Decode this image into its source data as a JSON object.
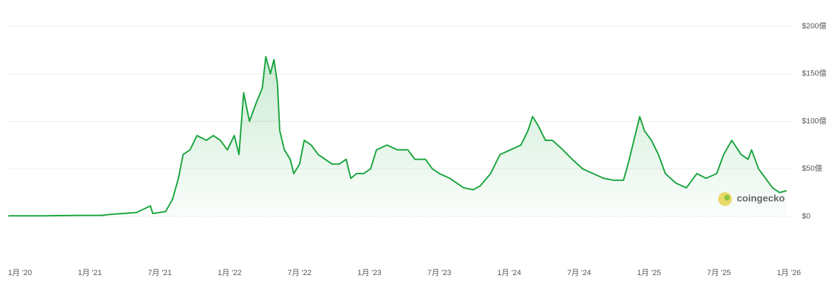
{
  "chart_data": {
    "type": "area-line",
    "x": [
      5,
      8,
      11,
      13,
      13.7,
      16,
      17.2,
      17.4,
      18.5,
      19.1,
      19.6,
      20,
      20.6,
      21.2,
      22,
      22.6,
      23.2,
      23.8,
      24.4,
      24.8,
      25.2,
      25.7,
      26.3,
      26.8,
      27.1,
      27.5,
      27.8,
      28.1,
      28.3,
      28.7,
      29.2,
      29.5,
      30,
      30.4,
      31,
      31.6,
      32.2,
      32.8,
      33.4,
      34,
      34.4,
      34.9,
      35.5,
      36.1,
      36.6,
      37.5,
      38.4,
      39.3,
      39.9,
      40.8,
      41.4,
      42,
      42.9,
      44.1,
      44.9,
      45.5,
      46.4,
      47.2,
      48.1,
      49,
      49.6,
      50,
      50.5,
      51.1,
      51.7,
      52.6,
      53.4,
      54.3,
      55.2,
      56.1,
      57,
      57.8,
      58.2,
      58.7,
      59.2,
      59.6,
      60.2,
      60.8,
      61.4,
      62.3,
      63.2,
      64.1,
      64.9,
      65.8,
      66.4,
      67.1,
      67.9,
      68.5,
      68.8,
      69.4,
      70,
      70.6,
      71.2,
      71.8
    ],
    "values": [
      0.5,
      0.5,
      1,
      1,
      2,
      4,
      11,
      3,
      5,
      18,
      40,
      65,
      70,
      85,
      80,
      85,
      80,
      70,
      85,
      65,
      130,
      100,
      120,
      135,
      168,
      150,
      165,
      140,
      90,
      70,
      60,
      45,
      55,
      80,
      75,
      65,
      60,
      55,
      55,
      60,
      40,
      45,
      45,
      50,
      70,
      75,
      70,
      70,
      60,
      60,
      50,
      45,
      40,
      30,
      28,
      32,
      45,
      65,
      70,
      75,
      90,
      105,
      95,
      80,
      80,
      70,
      60,
      50,
      45,
      40,
      38,
      38,
      55,
      80,
      105,
      90,
      80,
      65,
      45,
      35,
      30,
      45,
      40,
      45,
      65,
      80,
      65,
      60,
      70,
      50,
      40,
      30,
      25,
      27
    ],
    "color": "#16a33a",
    "xlim": [
      5,
      73
    ],
    "ylim": [
      -50,
      200
    ],
    "xticks": [
      {
        "value": 6,
        "label": "1月 '20"
      },
      {
        "value": 12,
        "label": "1月 '21"
      },
      {
        "value": 18,
        "label": "7月 '21"
      },
      {
        "value": 24,
        "label": "1月 '22"
      },
      {
        "value": 30,
        "label": "7月 '22"
      },
      {
        "value": 36,
        "label": "1月 '23"
      },
      {
        "value": 42,
        "label": "7月 '23"
      },
      {
        "value": 48,
        "label": "1月 '24"
      },
      {
        "value": 54,
        "label": "7月 '24"
      },
      {
        "value": 60,
        "label": "1月 '25"
      },
      {
        "value": 66,
        "label": "7月 '25"
      },
      {
        "value": 72,
        "label": "1月 '26"
      }
    ],
    "yticks": [
      {
        "value": 0,
        "label": "$0"
      },
      {
        "value": 50,
        "label": "$50億"
      },
      {
        "value": 100,
        "label": "$100億"
      },
      {
        "value": 150,
        "label": "$150億"
      },
      {
        "value": 200,
        "label": "$200億"
      }
    ],
    "grid": true,
    "watermark": "coingecko"
  }
}
